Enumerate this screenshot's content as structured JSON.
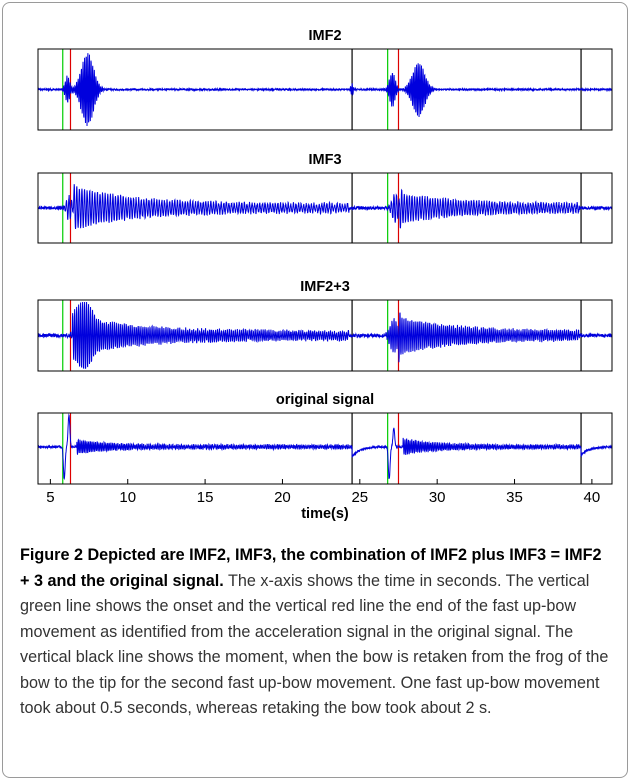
{
  "chart_data": {
    "type": "line",
    "x_axis": {
      "label": "time(s)",
      "ticks": [
        5,
        10,
        15,
        20,
        25,
        30,
        35,
        40
      ],
      "range": [
        4.2,
        41.3
      ]
    },
    "markers": {
      "green_onsets": [
        5.8,
        26.8
      ],
      "red_ends": [
        6.3,
        27.5
      ],
      "black_retake": [
        24.5,
        39.3
      ]
    },
    "marker_colors": {
      "green": "#00cc00",
      "red": "#dd0000",
      "black": "#000000"
    },
    "signal_color": "#0000dd",
    "panels": [
      {
        "title": "IMF2",
        "noise": 0.02,
        "bursts": [
          {
            "center": 7.4,
            "width": 0.55,
            "amp": 0.95,
            "freq": 3.2
          },
          {
            "center": 6.1,
            "width": 0.2,
            "amp": 0.35,
            "freq": 3.2
          },
          {
            "center": 28.8,
            "width": 0.55,
            "amp": 0.7,
            "freq": 3.2
          },
          {
            "center": 27.1,
            "width": 0.25,
            "amp": 0.45,
            "freq": 3.2
          },
          {
            "center": 24.5,
            "width": 0.12,
            "amp": 0.15,
            "freq": 3.2
          }
        ],
        "envelopes": []
      },
      {
        "title": "IMF3",
        "noise": 0.05,
        "bursts": [
          {
            "center": 6.2,
            "width": 0.25,
            "amp": 0.35,
            "freq": 2.0
          },
          {
            "center": 27.3,
            "width": 0.3,
            "amp": 0.45,
            "freq": 2.0
          }
        ],
        "envelopes": [
          {
            "start": 6.5,
            "end": 24.3,
            "amp": 0.65,
            "decay": 3.8,
            "floor": 0.12,
            "freq": 2.0
          },
          {
            "start": 27.6,
            "end": 39.2,
            "amp": 0.45,
            "decay": 3.5,
            "floor": 0.12,
            "freq": 2.0
          }
        ]
      },
      {
        "title": "IMF2+3",
        "noise": 0.05,
        "bursts": [
          {
            "center": 7.2,
            "width": 0.6,
            "amp": 0.55,
            "freq": 2.6
          },
          {
            "center": 27.2,
            "width": 0.35,
            "amp": 0.5,
            "freq": 2.6
          }
        ],
        "envelopes": [
          {
            "start": 6.4,
            "end": 24.3,
            "amp": 0.6,
            "decay": 4.0,
            "floor": 0.12,
            "freq": 2.6
          },
          {
            "start": 27.5,
            "end": 39.2,
            "amp": 0.55,
            "decay": 3.6,
            "floor": 0.12,
            "freq": 2.6
          }
        ]
      },
      {
        "title": "original signal",
        "noise": 0.03,
        "bursts": [],
        "envelopes": [
          {
            "start": 6.7,
            "end": 24.4,
            "amp": 0.22,
            "decay": 2.0,
            "floor": 0.05,
            "freq": 3.0
          },
          {
            "start": 27.8,
            "end": 39.2,
            "amp": 0.25,
            "decay": 2.0,
            "floor": 0.05,
            "freq": 3.0
          }
        ],
        "spikes": [
          {
            "t": 5.9,
            "dir": -1,
            "amp": 0.95
          },
          {
            "t": 6.2,
            "dir": 1,
            "amp": 0.95
          },
          {
            "t": 26.9,
            "dir": -1,
            "amp": 0.95
          },
          {
            "t": 27.2,
            "dir": 1,
            "amp": 0.55
          }
        ],
        "steps": [
          {
            "t": 24.5,
            "amp": -0.3
          },
          {
            "t": 39.3,
            "amp": -0.25
          }
        ],
        "baseline": 0.05
      }
    ]
  },
  "caption": {
    "label": "Figure 2",
    "title": "Depicted are IMF2, IMF3, the combination of IMF2 plus IMF3 = IMF2 + 3 and the original signal.",
    "body": "The x-axis shows the time in seconds. The vertical green line shows the onset and the vertical red line the end of the fast up-bow movement as identified from the acceleration signal in the original signal. The vertical black line shows the moment, when the bow is retaken from the frog of the bow to the tip for the second fast up-bow movement. One fast up-bow movement took about 0.5 seconds, whereas retaking the bow took about 2 s."
  }
}
